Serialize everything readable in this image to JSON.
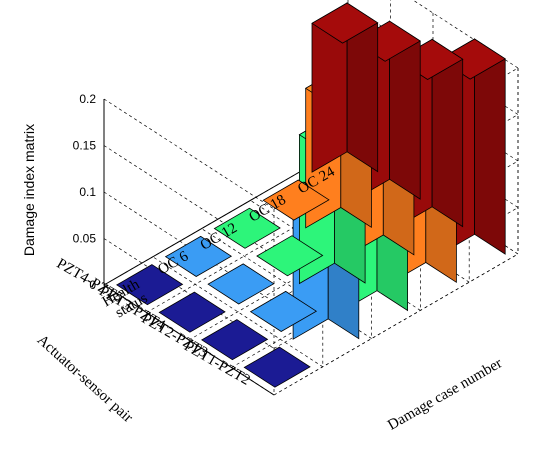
{
  "chart_data": {
    "type": "bar3d",
    "title": "",
    "zlabel": "Damage index matrix",
    "xlabel": "Damage case number",
    "ylabel": "Actuator-sensor pair",
    "zlim": [
      0,
      0.2
    ],
    "zticks": [
      "0",
      "0.05",
      "0.1",
      "0.15",
      "0.2"
    ],
    "x_categories": [
      "Health status",
      "OC 6",
      "OC 12",
      "OC 18",
      "OC 24"
    ],
    "y_categories": [
      "PZT1-PZT2",
      "PZT2-PZT3",
      "PZT3-PZT4",
      "PZT4-PZT5"
    ],
    "grid": true,
    "colors": [
      "#1b1b94",
      "#3a9cf4",
      "#2df57a",
      "#ff7f1e",
      "#990a0a"
    ],
    "values": [
      [
        0,
        0.16,
        0.17,
        0.19,
        0.21
      ],
      [
        0,
        0,
        0.16,
        0.17,
        0.18
      ],
      [
        0,
        0,
        0,
        0.15,
        0.17
      ],
      [
        0,
        0,
        0,
        0,
        0.16
      ]
    ]
  }
}
